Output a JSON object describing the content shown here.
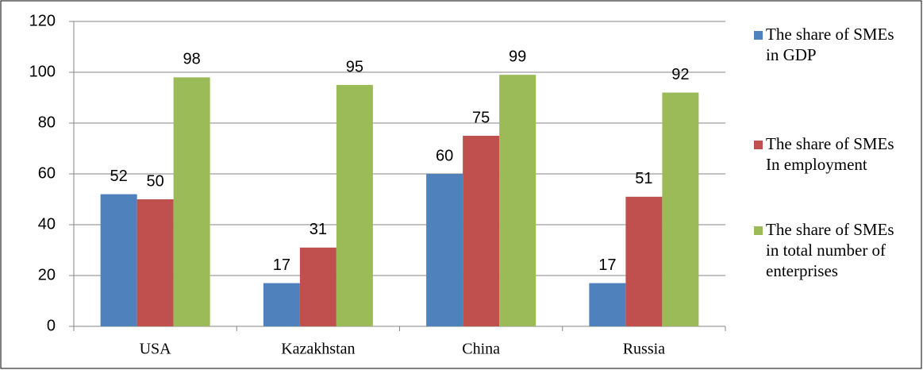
{
  "chart_data": {
    "type": "bar",
    "categories": [
      "USA",
      "Kazakhstan",
      "China",
      "Russia"
    ],
    "series": [
      {
        "name": "The share of SMEs in GDP",
        "color": "#4f81bd",
        "values": [
          52,
          17,
          60,
          17
        ]
      },
      {
        "name": "The share of SMEs In employment",
        "color": "#c0504d",
        "values": [
          50,
          31,
          75,
          51
        ]
      },
      {
        "name": "The share of SMEs in total number of enterprises",
        "color": "#9bbb59",
        "values": [
          98,
          95,
          99,
          92
        ]
      }
    ],
    "ylim": [
      0,
      120
    ],
    "yticks": [
      0,
      20,
      40,
      60,
      80,
      100,
      120
    ],
    "grid": true,
    "legend": "right"
  }
}
